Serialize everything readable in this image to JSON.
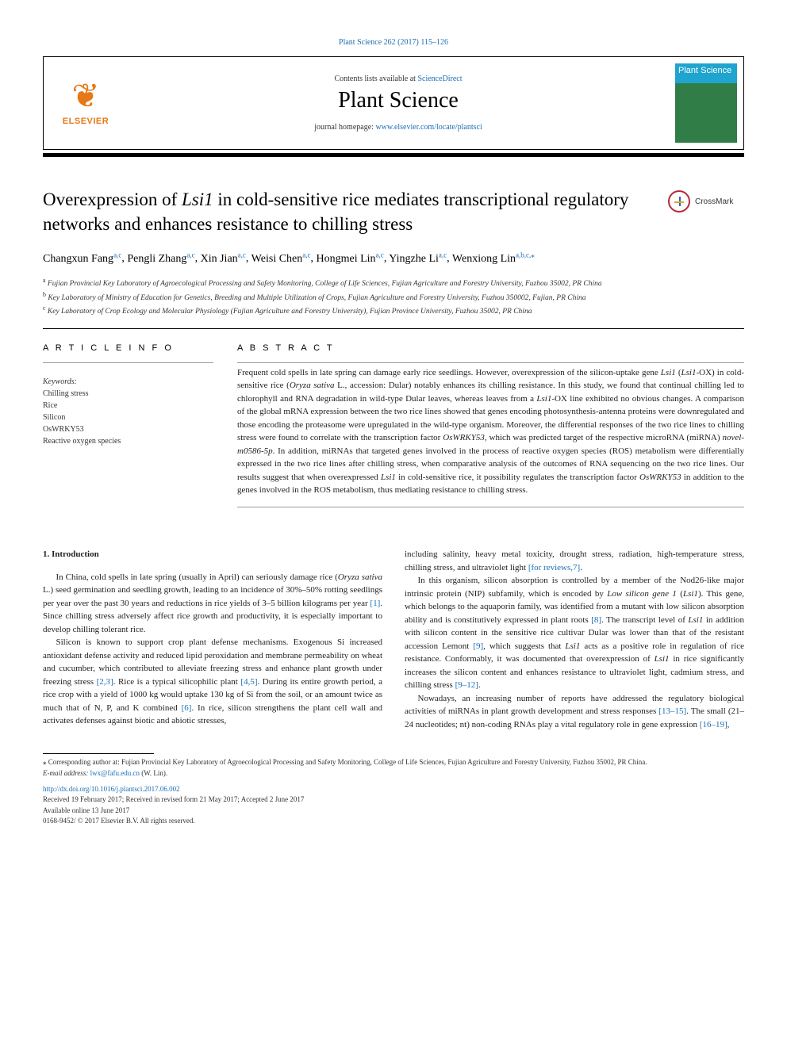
{
  "top_link": "Plant Science 262 (2017) 115–126",
  "header": {
    "contents_prefix": "Contents lists available at ",
    "contents_link": "ScienceDirect",
    "journal": "Plant Science",
    "homepage_prefix": "journal homepage: ",
    "homepage_link": "www.elsevier.com/locate/plantsci",
    "brand": "ELSEVIER",
    "cover_text": "Plant Science"
  },
  "crossmark": "CrossMark",
  "title_parts": {
    "p1": "Overexpression of ",
    "i1": "Lsi1",
    "p2": " in cold-sensitive rice mediates transcriptional regulatory networks and enhances resistance to chilling stress"
  },
  "authors": [
    {
      "name": "Changxun Fang",
      "sup": "a,c"
    },
    {
      "name": "Pengli Zhang",
      "sup": "a,c"
    },
    {
      "name": "Xin Jian",
      "sup": "a,c"
    },
    {
      "name": "Weisi Chen",
      "sup": "a,c"
    },
    {
      "name": "Hongmei Lin",
      "sup": "a,c"
    },
    {
      "name": "Yingzhe Li",
      "sup": "a,c"
    },
    {
      "name": "Wenxiong Lin",
      "sup": "a,b,c,⁎"
    }
  ],
  "affiliations": [
    {
      "sup": "a",
      "text": "Fujian Provincial Key Laboratory of Agroecological Processing and Safety Monitoring, College of Life Sciences, Fujian Agriculture and Forestry University, Fuzhou 35002, PR China"
    },
    {
      "sup": "b",
      "text": "Key Laboratory of Ministry of Education for Genetics, Breeding and Multiple Utilization of Crops, Fujian Agriculture and Forestry University, Fuzhou 350002, Fujian, PR China"
    },
    {
      "sup": "c",
      "text": "Key Laboratory of Crop Ecology and Molecular Physiology (Fujian Agriculture and Forestry University), Fujian Province University, Fuzhou 35002, PR China"
    }
  ],
  "article_info_head": "A R T I C L E  I N F O",
  "abstract_head": "A B S T R A C T",
  "keywords_label": "Keywords:",
  "keywords": [
    "Chilling stress",
    "Rice",
    "Silicon",
    "OsWRKY53",
    "Reactive oxygen species"
  ],
  "abstract": {
    "p1": "Frequent cold spells in late spring can damage early rice seedlings. However, overexpression of the silicon-uptake gene ",
    "i1": "Lsi1",
    "p2": " (",
    "i2": "Lsi1",
    "p3": "-OX) in cold-sensitive rice (",
    "i3": "Oryza sativa",
    "p4": " L., accession: Dular) notably enhances its chilling resistance. In this study, we found that continual chilling led to chlorophyll and RNA degradation in wild-type Dular leaves, whereas leaves from a ",
    "i4": "Lsi1",
    "p5": "-OX line exhibited no obvious changes. A comparison of the global mRNA expression between the two rice lines showed that genes encoding photosynthesis-antenna proteins were downregulated and those encoding the proteasome were upregulated in the wild-type organism. Moreover, the differential responses of the two rice lines to chilling stress were found to correlate with the transcription factor ",
    "i5": "OsWRKY53",
    "p6": ", which was predicted target of the respective microRNA (miRNA) ",
    "i6": "novel-m0586-5p",
    "p7": ". In addition, miRNAs that targeted genes involved in the process of reactive oxygen species (ROS) metabolism were differentially expressed in the two rice lines after chilling stress, when comparative analysis of the outcomes of RNA sequencing on the two rice lines. Our results suggest that when overexpressed ",
    "i7": "Lsi1",
    "p8": " in cold-sensitive rice, it possibility regulates the transcription factor ",
    "i8": "OsWRKY53",
    "p9": " in addition to the genes involved in the ROS metabolism, thus mediating resistance to chilling stress."
  },
  "intro_head": "1. Introduction",
  "body_left": [
    {
      "type": "p",
      "runs": [
        {
          "t": "In China, cold spells in late spring (usually in April) can seriously damage rice ("
        },
        {
          "t": "Oryza sativa",
          "i": true
        },
        {
          "t": " L.) seed germination and seedling growth, leading to an incidence of 30%–50% rotting seedlings per year over the past 30 years and reductions in rice yields of 3–5 billion kilograms per year "
        },
        {
          "t": "[1]",
          "ref": true
        },
        {
          "t": ". Since chilling stress adversely affect rice growth and productivity, it is especially important to develop chilling tolerant rice."
        }
      ]
    },
    {
      "type": "p",
      "runs": [
        {
          "t": "Silicon is known to support crop plant defense mechanisms. Exogenous Si increased antioxidant defense activity and reduced lipid peroxidation and membrane permeability on wheat and cucumber, which contributed to alleviate freezing stress and enhance plant growth under freezing stress "
        },
        {
          "t": "[2,3]",
          "ref": true
        },
        {
          "t": ". Rice is a typical silicophilic plant "
        },
        {
          "t": "[4,5]",
          "ref": true
        },
        {
          "t": ". During its entire growth period, a rice crop with a yield of 1000 kg would uptake 130 kg of Si from the soil, or an amount twice as much that of N, P, and K combined "
        },
        {
          "t": "[6]",
          "ref": true
        },
        {
          "t": ". In rice, silicon strengthens the plant cell wall and activates defenses against biotic and abiotic stresses,"
        }
      ]
    }
  ],
  "body_right": [
    {
      "type": "p",
      "noindent": true,
      "runs": [
        {
          "t": "including salinity, heavy metal toxicity, drought stress, radiation, high-temperature stress, chilling stress, and ultraviolet light "
        },
        {
          "t": "[for reviews,7]",
          "ref": true
        },
        {
          "t": "."
        }
      ]
    },
    {
      "type": "p",
      "runs": [
        {
          "t": "In this organism, silicon absorption is controlled by a member of the Nod26-like major intrinsic protein (NIP) subfamily, which is encoded by "
        },
        {
          "t": "Low silicon gene 1",
          "i": true
        },
        {
          "t": " ("
        },
        {
          "t": "Lsi1",
          "i": true
        },
        {
          "t": "). This gene, which belongs to the aquaporin family, was identified from a mutant with low silicon absorption ability and is constitutively expressed in plant roots "
        },
        {
          "t": "[8]",
          "ref": true
        },
        {
          "t": ". The transcript level of "
        },
        {
          "t": "Lsi1",
          "i": true
        },
        {
          "t": " in addition with silicon content in the sensitive rice cultivar Dular was lower than that of the resistant accession Lemont "
        },
        {
          "t": "[9]",
          "ref": true
        },
        {
          "t": ", which suggests that "
        },
        {
          "t": "Lsi1",
          "i": true
        },
        {
          "t": " acts as a positive role in regulation of rice resistance. Conformably, it was documented that overexpression of "
        },
        {
          "t": "Lsi1",
          "i": true
        },
        {
          "t": " in rice significantly increases the silicon content and enhances resistance to ultraviolet light, cadmium stress, and chilling stress "
        },
        {
          "t": "[9–12]",
          "ref": true
        },
        {
          "t": "."
        }
      ]
    },
    {
      "type": "p",
      "runs": [
        {
          "t": "Nowadays, an increasing number of reports have addressed the regulatory biological activities of miRNAs in plant growth development and stress responses "
        },
        {
          "t": "[13–15]",
          "ref": true
        },
        {
          "t": ". The small (21–24 nucleotides; nt) non-coding RNAs play a vital regulatory role in gene expression "
        },
        {
          "t": "[16–19]",
          "ref": true
        },
        {
          "t": ","
        }
      ]
    }
  ],
  "footnotes": {
    "corr": "⁎ Corresponding author at: Fujian Provincial Key Laboratory of Agroecological Processing and Safety Monitoring, College of Life Sciences, Fujian Agriculture and Forestry University, Fuzhou 35002, PR China.",
    "email_label": "E-mail address: ",
    "email": "lwx@fafu.edu.cn",
    "email_suffix": " (W. Lin)."
  },
  "doi": "http://dx.doi.org/10.1016/j.plantsci.2017.06.002",
  "received": [
    "Received 19 February 2017; Received in revised form 21 May 2017; Accepted 2 June 2017",
    "Available online 13 June 2017",
    "0168-9452/ © 2017 Elsevier B.V. All rights reserved."
  ],
  "colors": {
    "link": "#1a6eb4",
    "elsevier": "#e67817",
    "cover_top": "#1ea4cf",
    "cover_bot": "#307d48",
    "crossmark_red": "#b52b3a"
  }
}
